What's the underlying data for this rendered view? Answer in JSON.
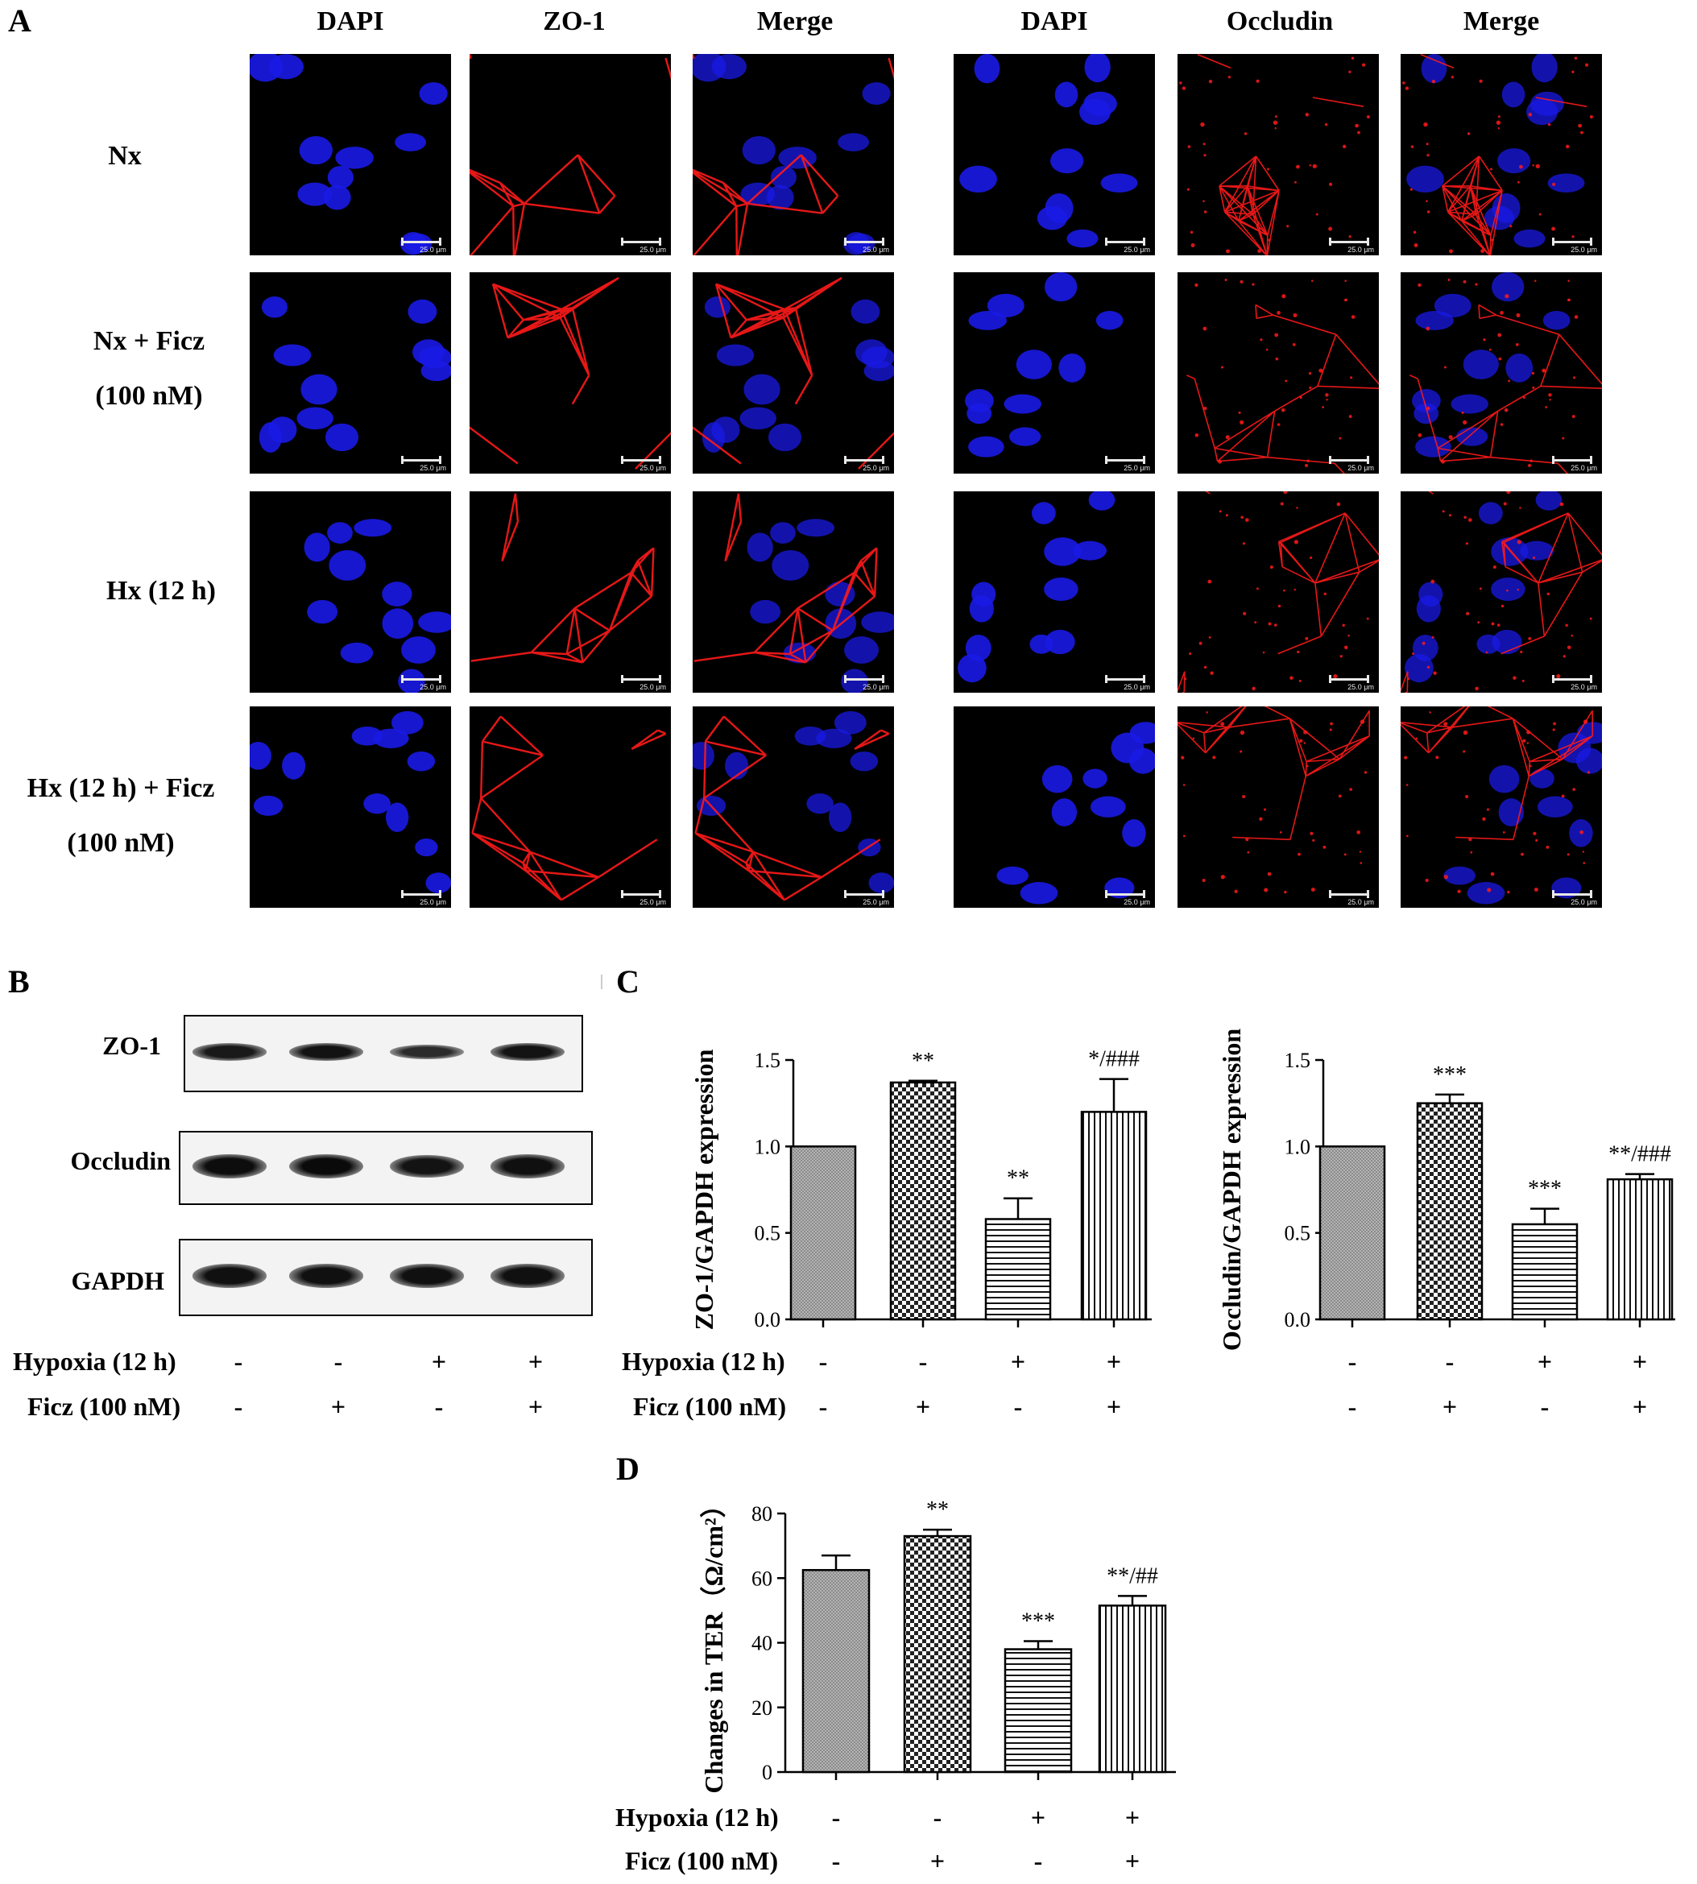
{
  "panels": {
    "a": {
      "letter": "A"
    },
    "b": {
      "letter": "B"
    },
    "c": {
      "letter": "C"
    },
    "d": {
      "letter": "D"
    }
  },
  "microscopy": {
    "left_headers": [
      "DAPI",
      "ZO-1",
      "Merge"
    ],
    "right_headers": [
      "DAPI",
      "Occludin",
      "Merge"
    ],
    "rows": [
      {
        "line1": "Nx",
        "line2": ""
      },
      {
        "line1": "Nx + Ficz",
        "line2": "(100 nM)"
      },
      {
        "line1": "Hx (12 h)",
        "line2": ""
      },
      {
        "line1": "Hx (12 h) + Ficz",
        "line2": "(100 nM)"
      }
    ],
    "scale_bar_label": "25.0 μm",
    "colors": {
      "nucleus": "#1a1ae6",
      "junction": "#ff1a1a",
      "background": "#000000"
    }
  },
  "western_blot": {
    "proteins": [
      "ZO-1",
      "Occludin",
      "GAPDH"
    ],
    "relative_band_intensity": [
      [
        0.75,
        0.85,
        0.45,
        0.85
      ],
      [
        0.95,
        1.0,
        0.85,
        0.9
      ],
      [
        0.9,
        0.9,
        0.9,
        0.9
      ]
    ]
  },
  "conditions": {
    "hypoxia_label": "Hypoxia (12 h)",
    "ficz_label": "Ficz (100 nM)",
    "hypoxia": [
      "-",
      "-",
      "+",
      "+"
    ],
    "ficz": [
      "-",
      "+",
      "-",
      "+"
    ]
  },
  "chart_data": [
    {
      "type": "bar",
      "panel": "C",
      "ylabel": "ZO-1/GAPDH expression",
      "ylim": [
        0,
        1.5
      ],
      "yticks": [
        "0.0",
        "0.5",
        "1.0",
        "1.5"
      ],
      "categories": [
        "Nx",
        "Nx + Ficz",
        "Hx",
        "Hx + Ficz"
      ],
      "values": [
        1.0,
        1.37,
        0.58,
        1.2
      ],
      "errors": [
        0,
        0.01,
        0.12,
        0.19
      ],
      "annotations": [
        "",
        "**",
        "**",
        "*/###"
      ],
      "patterns": [
        "grain",
        "checker",
        "hlines",
        "vlines"
      ]
    },
    {
      "type": "bar",
      "panel": "C",
      "ylabel": "Occludin/GAPDH expression",
      "ylim": [
        0,
        1.5
      ],
      "yticks": [
        "0.0",
        "0.5",
        "1.0",
        "1.5"
      ],
      "categories": [
        "Nx",
        "Nx + Ficz",
        "Hx",
        "Hx + Ficz"
      ],
      "values": [
        1.0,
        1.25,
        0.55,
        0.81
      ],
      "errors": [
        0,
        0.05,
        0.09,
        0.03
      ],
      "annotations": [
        "",
        "***",
        "***",
        "**/###"
      ],
      "patterns": [
        "grain",
        "checker",
        "hlines",
        "vlines"
      ]
    },
    {
      "type": "bar",
      "panel": "D",
      "ylabel": "Changes in TER（Ω/cm²）",
      "ylim": [
        0,
        80
      ],
      "yticks": [
        "0",
        "20",
        "40",
        "60",
        "80"
      ],
      "categories": [
        "Nx",
        "Nx + Ficz",
        "Hx",
        "Hx + Ficz"
      ],
      "values": [
        62.5,
        73,
        38,
        51.5
      ],
      "errors": [
        4.5,
        2,
        2.5,
        3
      ],
      "annotations": [
        "",
        "**",
        "***",
        "**/##"
      ],
      "patterns": [
        "grain",
        "checker",
        "hlines",
        "vlines"
      ]
    }
  ]
}
